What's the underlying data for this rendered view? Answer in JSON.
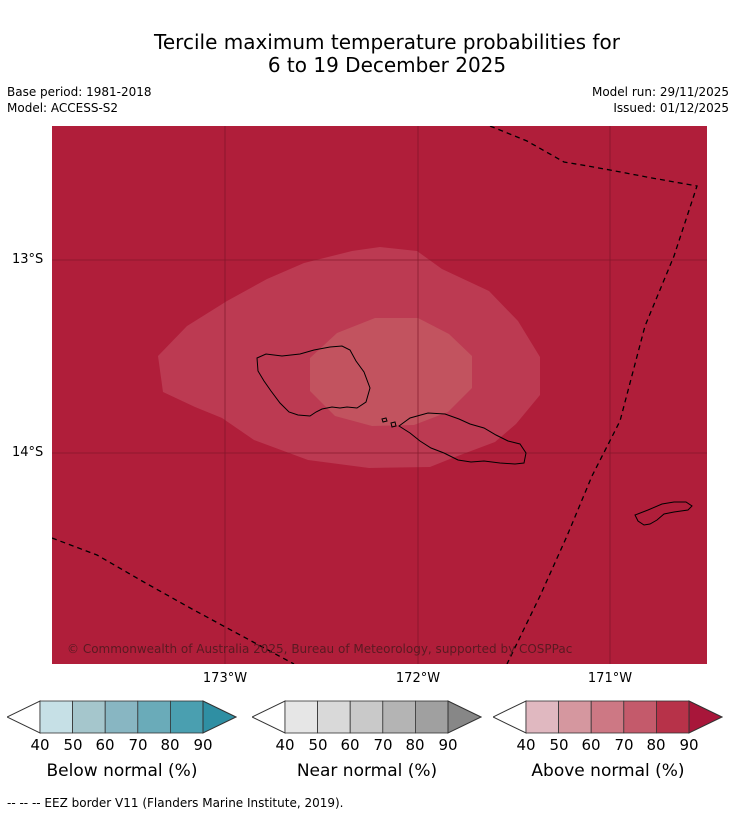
{
  "title": {
    "line1": "Tercile maximum temperature probabilities for",
    "line2": "6 to 19 December 2025"
  },
  "meta": {
    "base_period": "Base period: 1981-2018",
    "model": "Model: ACCESS-S2",
    "model_run": "Model run: 29/11/2025",
    "issued": "Issued: 01/12/2025"
  },
  "map": {
    "lat_labels": [
      "13°S",
      "14°S"
    ],
    "lon_labels": [
      "173°W",
      "172°W",
      "171°W"
    ],
    "copyright": "© Commonwealth of Australia 2025, Bureau of Meteorology, supported by COSPPac",
    "colors": {
      "background": "#b01e3a",
      "contour_70_80": "#bc3a52",
      "contour_60_70": "#c2535f"
    }
  },
  "legend": {
    "ticks": [
      "40",
      "50",
      "60",
      "70",
      "80",
      "90"
    ],
    "below": {
      "title": "Below normal (%)",
      "colors": [
        "#c6e0e6",
        "#a5c6cc",
        "#88b6c2",
        "#6aabb9",
        "#4a9fb0",
        "#2f8fa3"
      ]
    },
    "near": {
      "title": "Near normal (%)",
      "colors": [
        "#e6e6e6",
        "#d9d9d9",
        "#c9c9c9",
        "#b4b4b4",
        "#a0a0a0",
        "#878787"
      ]
    },
    "above": {
      "title": "Above normal (%)",
      "colors": [
        "#e0b8c0",
        "#d5979f",
        "#cd7884",
        "#c45a6b",
        "#b73249",
        "#a8163a"
      ]
    }
  },
  "footnote": "--  --  -- EEZ border V11 (Flanders Marine Institute, 2019)."
}
